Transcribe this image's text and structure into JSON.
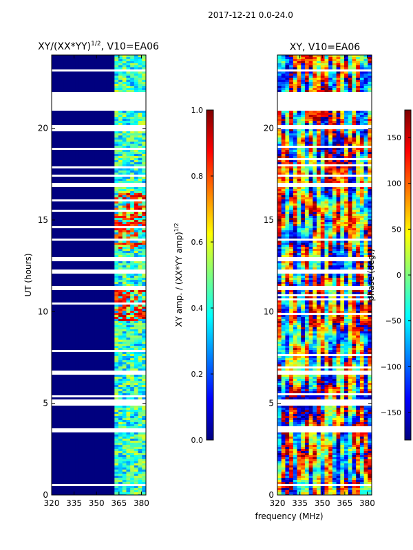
{
  "suptitle": "2017-12-21 0.0-24.0",
  "common_xlabel": "frequency (MHz)",
  "colors": {
    "jet": [
      "#00007f",
      "#0000ff",
      "#007fff",
      "#00ffff",
      "#7fff7f",
      "#ffff00",
      "#ff7f00",
      "#ff0000",
      "#7f0000"
    ],
    "frame": "#000000",
    "gap": "#ffffff"
  },
  "chart_data": [
    {
      "type": "heatmap",
      "name": "amplitude-ratio",
      "title": "XY/(XX*YY)",
      "title_power": "1/2",
      "title_suffix": ", V10=EA06",
      "xlabel": "",
      "ylabel": "UT (hours)",
      "xlim": [
        320,
        383
      ],
      "ylim": [
        0,
        24
      ],
      "xticks": [
        320,
        335,
        350,
        365,
        380
      ],
      "yticks": [
        0,
        5,
        10,
        15,
        20
      ],
      "colorbar": {
        "label": "XY amp. / (XX*YY amp)",
        "label_power": "1/2",
        "range": [
          0.0,
          1.0
        ],
        "ticks": [
          0.0,
          0.2,
          0.4,
          0.6,
          0.8,
          1.0
        ],
        "tick_labels": [
          "0.0",
          "0.2",
          "0.4",
          "0.6",
          "0.8",
          "1.0"
        ]
      },
      "gaps_hours": [
        [
          21.0,
          22.0
        ],
        [
          20.05,
          20.2
        ],
        [
          17.4,
          17.55
        ],
        [
          16.85,
          17.05
        ],
        [
          13.9,
          14.1
        ],
        [
          12.85,
          13.05
        ],
        [
          12.15,
          12.3
        ],
        [
          11.2,
          11.4
        ],
        [
          6.6,
          6.8
        ],
        [
          4.9,
          5.3
        ],
        [
          3.5,
          3.7
        ],
        [
          0.55,
          0.7
        ]
      ],
      "bright_band_hours": [
        [
          13.5,
          16.5
        ],
        [
          9.5,
          11.5
        ]
      ],
      "active_channels_mhz": [
        [
          362,
          383
        ]
      ]
    },
    {
      "type": "heatmap",
      "name": "phase",
      "title": "XY, V10=EA06",
      "xlabel": "",
      "ylabel": "",
      "xlim": [
        320,
        383
      ],
      "ylim": [
        0,
        24
      ],
      "xticks": [
        320,
        335,
        350,
        365,
        380
      ],
      "yticks": [
        0,
        5,
        10,
        15,
        20
      ],
      "colorbar": {
        "label": "phase (deg.)",
        "range": [
          -180,
          180
        ],
        "ticks": [
          -150,
          -100,
          -50,
          0,
          50,
          100,
          150
        ],
        "tick_labels": [
          "−150",
          "−100",
          "−50",
          "0",
          "50",
          "100",
          "150"
        ]
      },
      "gaps_hours": [
        [
          21.0,
          22.0
        ],
        [
          20.05,
          20.2
        ],
        [
          17.4,
          17.55
        ],
        [
          16.85,
          17.05
        ],
        [
          13.9,
          14.1
        ],
        [
          12.85,
          13.05
        ],
        [
          12.15,
          12.3
        ],
        [
          11.2,
          11.4
        ],
        [
          6.6,
          6.8
        ],
        [
          4.9,
          5.3
        ],
        [
          3.5,
          3.7
        ],
        [
          0.55,
          0.7
        ]
      ]
    }
  ]
}
